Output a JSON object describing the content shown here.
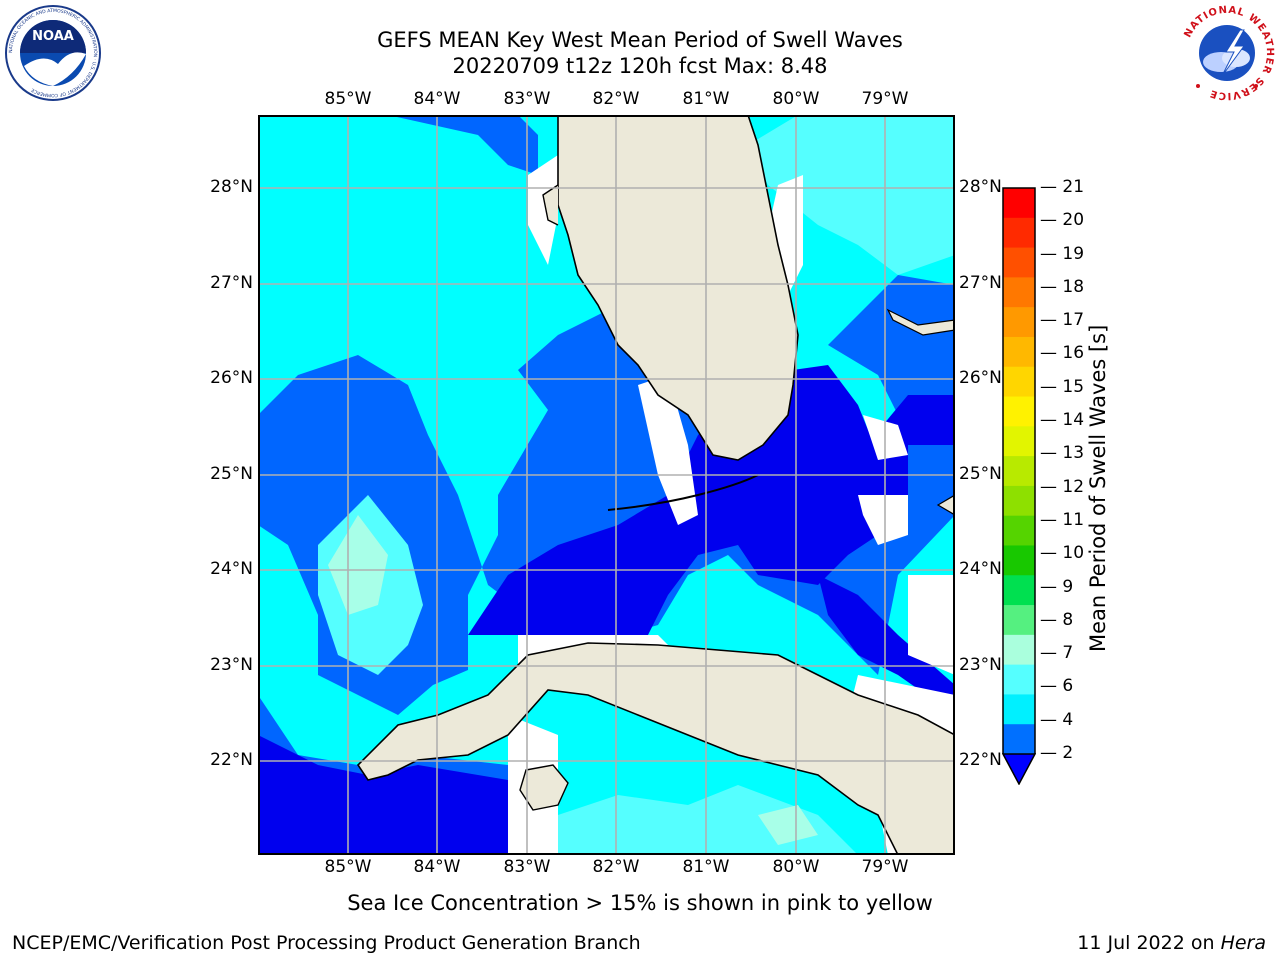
{
  "title": {
    "line1": "GEFS MEAN Key West Mean Period of Swell Waves",
    "line2": "20220709 t12z 120h fcst   Max: 8.48"
  },
  "logos": {
    "noaa_text": "NOAA",
    "noaa_ring": "NATIONAL OCEANIC AND ATMOSPHERIC ADMINISTRATION · U.S. DEPARTMENT OF COMMERCE",
    "nws_ring": "NATIONAL WEATHER SERVICE"
  },
  "axes": {
    "lon_labels": [
      "85°W",
      "84°W",
      "83°W",
      "82°W",
      "81°W",
      "80°W",
      "79°W"
    ],
    "lat_labels": [
      "28°N",
      "27°N",
      "26°N",
      "25°N",
      "24°N",
      "23°N",
      "22°N"
    ]
  },
  "colorbar": {
    "label": "Mean Period of Swell Waves [s]",
    "ticks": [
      "21",
      "20",
      "19",
      "18",
      "17",
      "16",
      "15",
      "14",
      "13",
      "12",
      "11",
      "10",
      "9",
      "8",
      "7",
      "6",
      "4",
      "2"
    ],
    "colors_top_to_bottom": [
      "#ff0000",
      "#ff2a00",
      "#ff5000",
      "#ff7800",
      "#ff9900",
      "#ffb800",
      "#ffd600",
      "#fff200",
      "#e2f500",
      "#b8ea00",
      "#8ee000",
      "#55d400",
      "#18c800",
      "#00e050",
      "#55f080",
      "#aaffdd",
      "#55ffff",
      "#00f0ff",
      "#0070ff"
    ],
    "extend_color": "#0000ff"
  },
  "legend_colors": {
    "land": "#ece9d9",
    "period_2_4": "#0000ee",
    "period_4_6": "#0066ff",
    "period_6_7": "#00ffff",
    "period_7_8": "#55ffff",
    "period_8_9": "#a8ffe8",
    "no_data": "#ffffff"
  },
  "footer": {
    "note": "Sea Ice Concentration > 15% is shown in pink to yellow",
    "branch": "NCEP/EMC/Verification Post Processing Product Generation Branch",
    "date": "11 Jul 2022 on ",
    "machine": "Hera"
  }
}
